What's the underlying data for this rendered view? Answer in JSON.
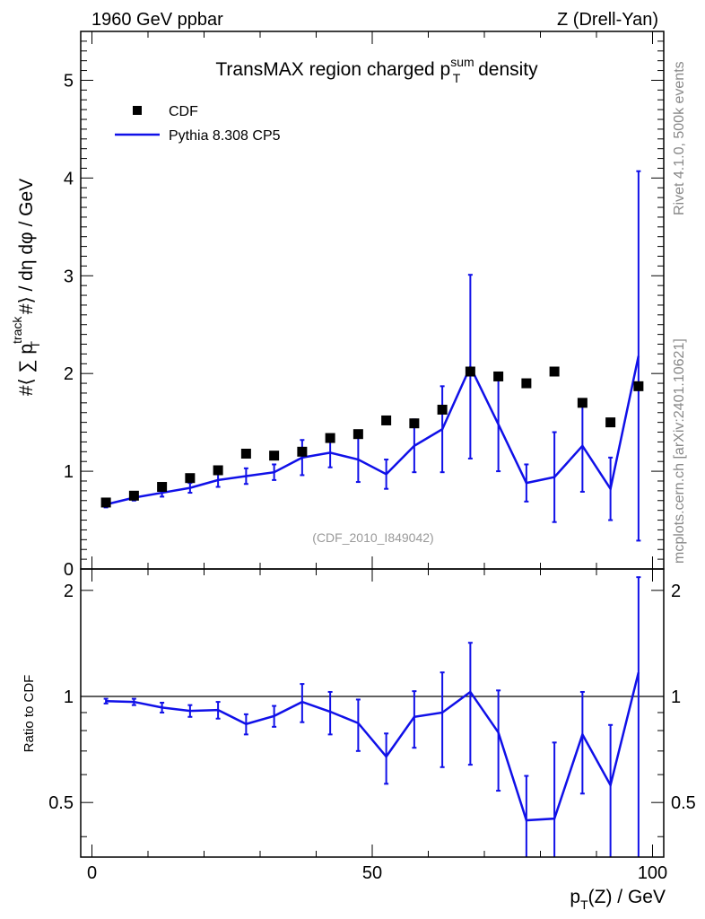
{
  "header": {
    "left": "1960 GeV ppbar",
    "right": "Z (Drell-Yan)"
  },
  "side_labels": {
    "rivet": "Rivet 4.1.0,  500k events",
    "mcplots": "mcplots.cern.ch [arXiv:2401.10621]"
  },
  "colors": {
    "mc": "#1010e8",
    "data": "#000000"
  },
  "chart_data": [
    {
      "type": "scatter",
      "panel": "main",
      "title": "TransMAX region charged p_T^sum density",
      "title_parts": {
        "pre": "TransMAX region charged p",
        "sub": "T",
        "sup": "sum",
        "post": " density"
      },
      "ylabel": "#⟨ ∑ p_T^track #⟩ / dη dφ / GeV",
      "ylabel_parts": {
        "pre": "#⟨ ∑ p",
        "sup": "track",
        "sub": "T",
        "post": " #⟩ / dη dφ / GeV"
      },
      "xlabel": "",
      "xlim": [
        -2,
        102
      ],
      "ylim": [
        0,
        5.5
      ],
      "yticks": [
        0,
        1,
        2,
        3,
        4,
        5
      ],
      "annotation": "(CDF_2010_I849042)",
      "legend_placement": "top-left",
      "series": [
        {
          "name": "CDF",
          "style": "markers",
          "x": [
            2.5,
            7.5,
            12.5,
            17.5,
            22.5,
            27.5,
            32.5,
            37.5,
            42.5,
            47.5,
            52.5,
            57.5,
            62.5,
            67.5,
            72.5,
            77.5,
            82.5,
            87.5,
            92.5,
            97.5
          ],
          "y": [
            0.68,
            0.75,
            0.84,
            0.93,
            1.01,
            1.18,
            1.16,
            1.2,
            1.34,
            1.38,
            1.52,
            1.49,
            1.63,
            2.02,
            1.97,
            1.9,
            2.02,
            1.7,
            1.5,
            1.87
          ]
        },
        {
          "name": "Pythia 8.308 CP5",
          "style": "line",
          "x": [
            2.5,
            7.5,
            12.5,
            17.5,
            22.5,
            27.5,
            32.5,
            37.5,
            42.5,
            47.5,
            52.5,
            57.5,
            62.5,
            67.5,
            72.5,
            77.5,
            82.5,
            87.5,
            92.5,
            97.5
          ],
          "y": [
            0.66,
            0.73,
            0.78,
            0.83,
            0.91,
            0.95,
            0.99,
            1.14,
            1.19,
            1.12,
            0.97,
            1.26,
            1.43,
            2.07,
            1.48,
            0.88,
            0.94,
            1.26,
            0.82,
            2.18
          ],
          "yerr": [
            0.03,
            0.03,
            0.04,
            0.05,
            0.07,
            0.08,
            0.08,
            0.18,
            0.15,
            0.23,
            0.15,
            0.27,
            0.44,
            0.94,
            0.48,
            0.19,
            0.46,
            0.47,
            0.32,
            1.89
          ]
        }
      ]
    },
    {
      "type": "line",
      "panel": "ratio",
      "ylabel": "Ratio to CDF",
      "xlabel": "p_T(Z) / GeV",
      "xlabel_parts": {
        "pre": "p",
        "sub": "T",
        "post": "(Z) / GeV"
      },
      "xlim": [
        -2,
        102
      ],
      "ylim": [
        0.35,
        2.3
      ],
      "yticks": [
        0.5,
        1,
        2
      ],
      "ytick_labels": [
        "0.5",
        "1",
        "2"
      ],
      "xticks": [
        0,
        50,
        100
      ],
      "xtick_labels": [
        "0",
        "50",
        "100"
      ],
      "reference_line": 1,
      "series": [
        {
          "name": "Pythia 8.308 CP5",
          "x": [
            2.5,
            7.5,
            12.5,
            17.5,
            22.5,
            27.5,
            32.5,
            37.5,
            42.5,
            47.5,
            52.5,
            57.5,
            62.5,
            67.5,
            72.5,
            77.5,
            82.5,
            87.5,
            92.5,
            97.5
          ],
          "y": [
            0.97,
            0.965,
            0.93,
            0.91,
            0.915,
            0.835,
            0.88,
            0.965,
            0.905,
            0.84,
            0.675,
            0.875,
            0.9,
            1.03,
            0.79,
            0.445,
            0.45,
            0.78,
            0.56,
            1.17
          ],
          "yerr": [
            0.015,
            0.02,
            0.03,
            0.035,
            0.05,
            0.055,
            0.06,
            0.12,
            0.125,
            0.14,
            0.11,
            0.16,
            0.27,
            0.39,
            0.25,
            0.15,
            0.29,
            0.25,
            0.27,
            1.01
          ]
        }
      ]
    }
  ]
}
